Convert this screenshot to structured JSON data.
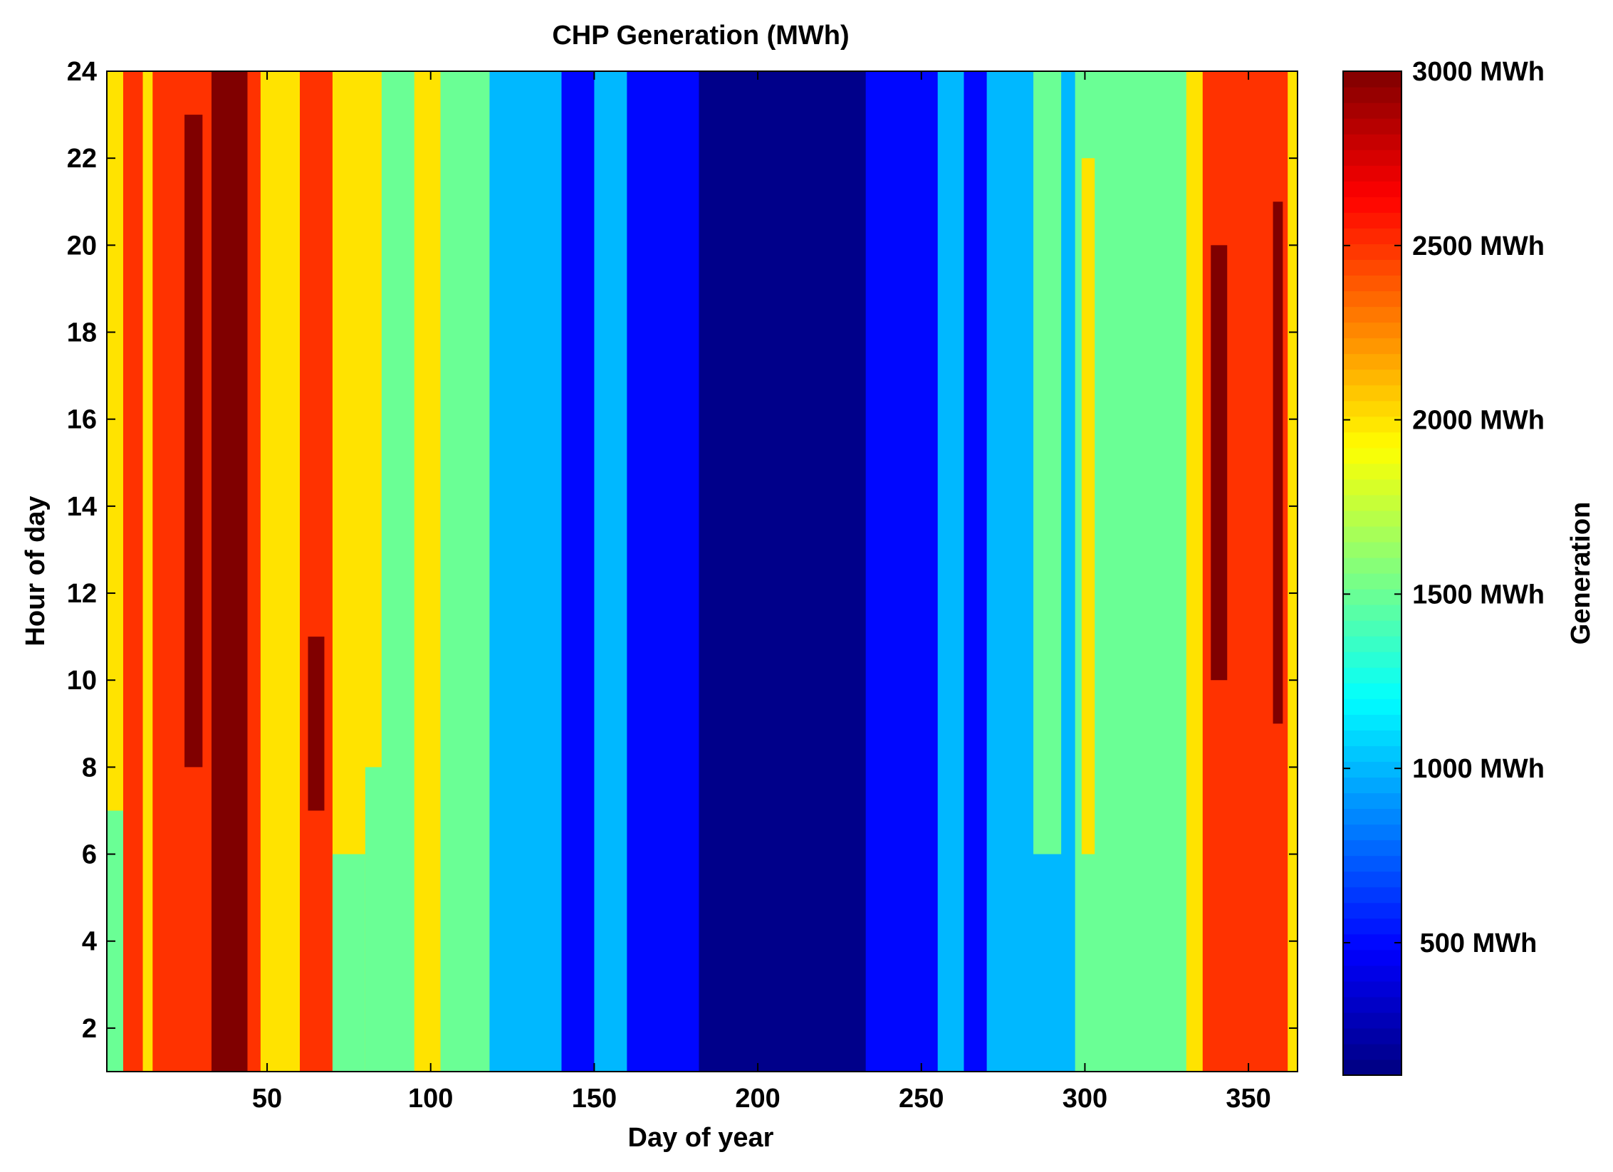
{
  "chart_data": {
    "type": "heatmap",
    "title": "CHP Generation (MWh)",
    "xlabel": "Day of year",
    "ylabel": "Hour of day",
    "colorbar_label": "Generation",
    "xlim": [
      1,
      365
    ],
    "ylim": [
      1,
      24
    ],
    "xticks": [
      50,
      100,
      150,
      200,
      250,
      300,
      350
    ],
    "yticks": [
      2,
      4,
      6,
      8,
      10,
      12,
      14,
      16,
      18,
      20,
      22,
      24
    ],
    "colorbar": {
      "range": [
        120,
        3000
      ],
      "colormap": "jet",
      "ticks": [
        {
          "value": 500,
          "label": "500 MWh"
        },
        {
          "value": 1000,
          "label": "1000 MWh"
        },
        {
          "value": 1500,
          "label": "1500 MWh"
        },
        {
          "value": 2000,
          "label": "2000 MWh"
        },
        {
          "value": 2500,
          "label": "2500 MWh"
        },
        {
          "value": 3000,
          "label": "3000 MWh"
        }
      ]
    },
    "daily_profile": [
      {
        "day_start": 1,
        "day_end": 6,
        "value": 2000,
        "low_hours_value": 1500,
        "low_hours_max": 7
      },
      {
        "day_start": 6,
        "day_end": 12,
        "value": 2500
      },
      {
        "day_start": 12,
        "day_end": 15,
        "value": 2000
      },
      {
        "day_start": 15,
        "day_end": 22,
        "value": 2500
      },
      {
        "day_start": 22,
        "day_end": 33,
        "value": 2500,
        "accent_value": 3000,
        "accent_hours": [
          8,
          23
        ]
      },
      {
        "day_start": 33,
        "day_end": 44,
        "value": 3000
      },
      {
        "day_start": 44,
        "day_end": 48,
        "value": 2500
      },
      {
        "day_start": 48,
        "day_end": 60,
        "value": 2000
      },
      {
        "day_start": 60,
        "day_end": 70,
        "value": 2500,
        "accent_value": 3000,
        "accent_hours": [
          7,
          11
        ]
      },
      {
        "day_start": 70,
        "day_end": 80,
        "value": 2000,
        "low_hours_value": 1500,
        "low_hours_max": 6
      },
      {
        "day_start": 80,
        "day_end": 85,
        "value": 2000,
        "low_hours_value": 1500,
        "low_hours_max": 8
      },
      {
        "day_start": 85,
        "day_end": 95,
        "value": 1500
      },
      {
        "day_start": 95,
        "day_end": 103,
        "value": 2000
      },
      {
        "day_start": 103,
        "day_end": 118,
        "value": 1500
      },
      {
        "day_start": 118,
        "day_end": 140,
        "value": 1000
      },
      {
        "day_start": 140,
        "day_end": 150,
        "value": 500
      },
      {
        "day_start": 150,
        "day_end": 160,
        "value": 1000
      },
      {
        "day_start": 160,
        "day_end": 182,
        "value": 500
      },
      {
        "day_start": 182,
        "day_end": 233,
        "value": 150
      },
      {
        "day_start": 233,
        "day_end": 255,
        "value": 500
      },
      {
        "day_start": 255,
        "day_end": 263,
        "value": 1000
      },
      {
        "day_start": 263,
        "day_end": 270,
        "value": 500
      },
      {
        "day_start": 270,
        "day_end": 280,
        "value": 1000
      },
      {
        "day_start": 280,
        "day_end": 297,
        "value": 1000,
        "accent_value": 1500,
        "accent_hours": [
          6,
          24
        ]
      },
      {
        "day_start": 297,
        "day_end": 305,
        "value": 1500,
        "accent_value": 2000,
        "accent_hours": [
          6,
          22
        ]
      },
      {
        "day_start": 305,
        "day_end": 331,
        "value": 1500
      },
      {
        "day_start": 331,
        "day_end": 336,
        "value": 2000
      },
      {
        "day_start": 336,
        "day_end": 346,
        "value": 2500,
        "accent_value": 3000,
        "accent_hours": [
          10,
          20
        ]
      },
      {
        "day_start": 346,
        "day_end": 356,
        "value": 2500
      },
      {
        "day_start": 356,
        "day_end": 362,
        "value": 2500,
        "accent_value": 3000,
        "accent_hours": [
          9,
          21
        ]
      },
      {
        "day_start": 362,
        "day_end": 365,
        "value": 2000
      }
    ]
  }
}
